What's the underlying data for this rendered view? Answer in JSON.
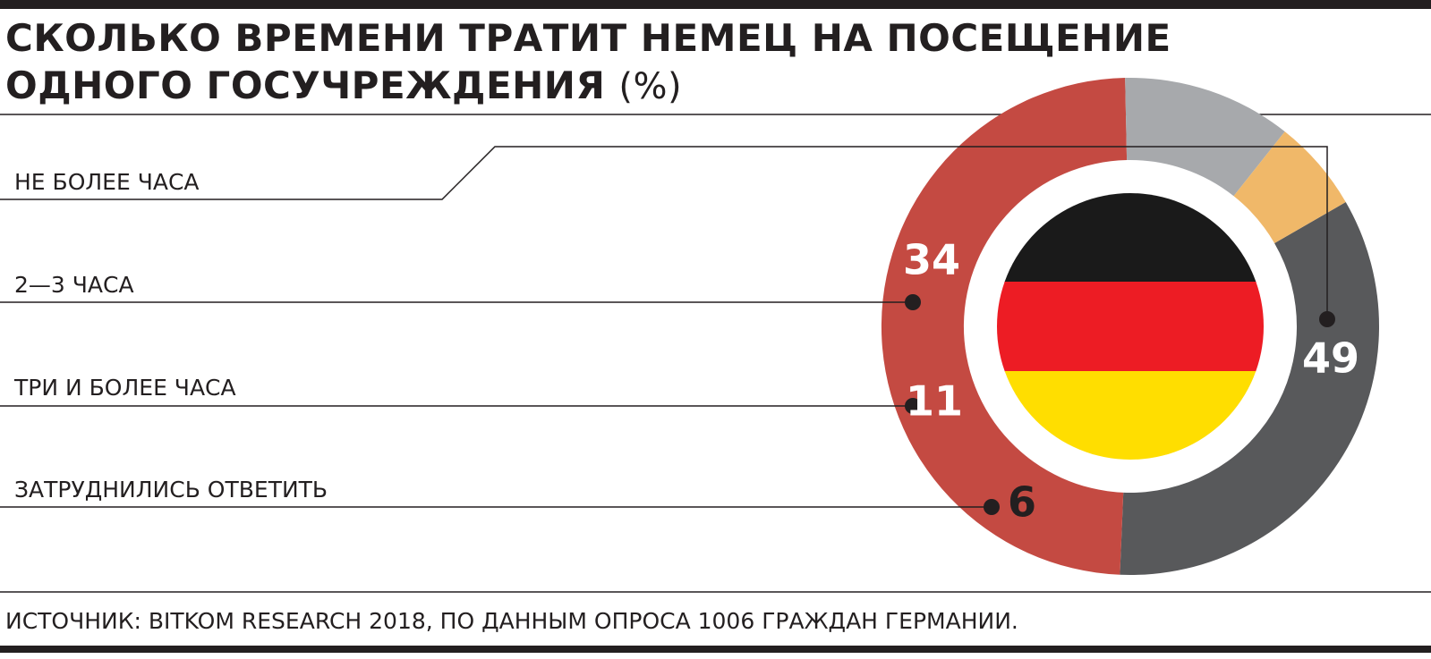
{
  "title": {
    "text": "СКОЛЬКО ВРЕМЕНИ ТРАТИТ НЕМЕЦ НА ПОСЕЩЕНИЕ ОДНОГО ГОСУЧРЕЖДЕНИЯ",
    "line1": "СКОЛЬКО ВРЕМЕНИ ТРАТИТ НЕМЕЦ НА ПОСЕЩЕНИЕ",
    "line2": "ОДНОГО ГОСУЧРЕЖДЕНИЯ",
    "unit": "(%)"
  },
  "source": "ИСТОЧНИК: BITKOM RESEARCH 2018, ПО ДАННЫМ ОПРОСА 1006 ГРАЖДАН ГЕРМАНИИ.",
  "colors": {
    "rule": "#231f20",
    "ne_bolee_chasa": "#c44a42",
    "dva_tri_chasa": "#58595b",
    "tri_i_bolee": "#a7a9ac",
    "zatrudnilis": "#f0b869",
    "flag_black": "#1a1a1a",
    "flag_red": "#ed1c24",
    "flag_gold": "#ffde00"
  },
  "chart_data": {
    "type": "pie",
    "title": "СКОЛЬКО ВРЕМЕНИ ТРАТИТ НЕМЕЦ НА ПОСЕЩЕНИЕ ОДНОГО ГОСУЧРЕЖДЕНИЯ (%)",
    "categories": [
      "НЕ БОЛЕЕ ЧАСА",
      "2—3 ЧАСА",
      "ТРИ И БОЛЕЕ ЧАСА",
      "ЗАТРУДНИЛИСЬ ОТВЕТИТЬ"
    ],
    "values": [
      49,
      34,
      11,
      6
    ],
    "labels": [
      "49",
      "34",
      "11",
      "6"
    ],
    "series_colors": [
      "#c44a42",
      "#58595b",
      "#a7a9ac",
      "#f0b869"
    ],
    "center_image": "germany-flag"
  }
}
